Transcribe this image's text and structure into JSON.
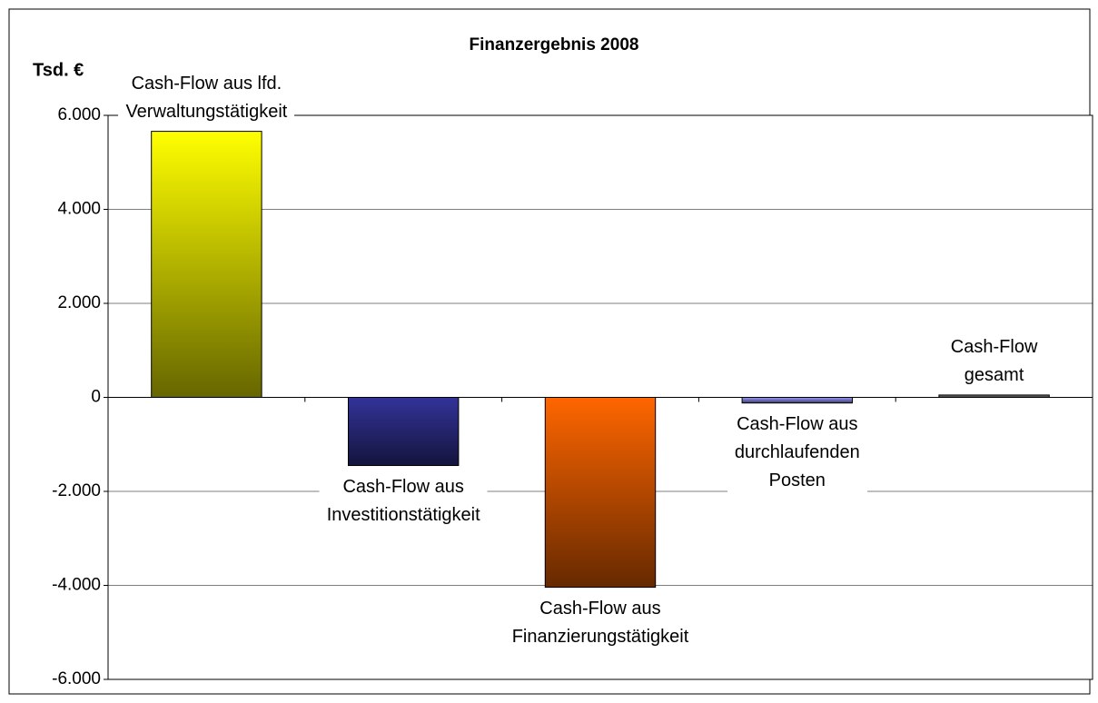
{
  "chart_data": {
    "type": "bar",
    "title": "Finanzergebnis 2008",
    "y_label": "Tsd. €",
    "categories": [
      "Cash-Flow aus lfd.\nVerwaltungstätigkeit",
      "Cash-Flow aus\nInvestitionstätigkeit",
      "Cash-Flow aus\nFinanzierungstätigkeit",
      "Cash-Flow aus\ndurchlaufenden\nPosten",
      "Cash-Flow\ngesamt"
    ],
    "values": [
      5660,
      -1450,
      -4040,
      -120,
      50
    ],
    "colors": [
      "#ffff00",
      "#333399",
      "#ff6600",
      "#9999ff",
      "#808080"
    ],
    "ylim": [
      -6000,
      6000
    ],
    "yticks": [
      {
        "value": -6000,
        "label": "-6.000"
      },
      {
        "value": -4000,
        "label": "-4.000"
      },
      {
        "value": -2000,
        "label": "-2.000"
      },
      0,
      {
        "value": 2000,
        "label": "2.000"
      },
      {
        "value": 4000,
        "label": "4.000"
      },
      {
        "value": 6000,
        "label": "6.000"
      }
    ],
    "grid": true
  }
}
